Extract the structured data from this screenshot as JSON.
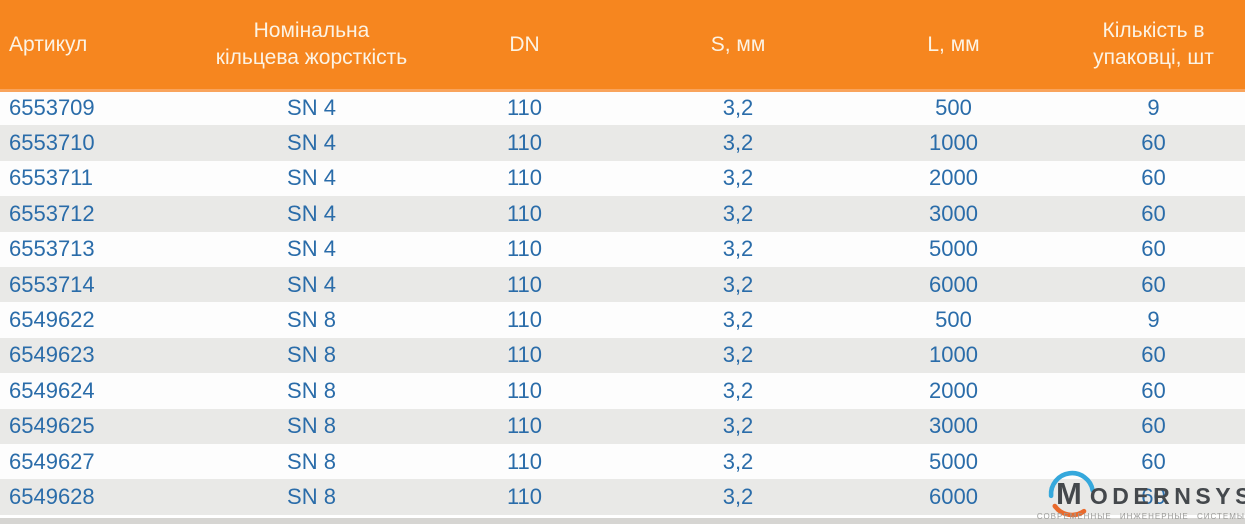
{
  "table": {
    "columns": [
      {
        "label": "Артикул"
      },
      {
        "label": "Номінальна кільцева жорсткість"
      },
      {
        "label": "DN"
      },
      {
        "label": "S, мм"
      },
      {
        "label": "L, мм"
      },
      {
        "label": "Кількість в упаковці, шт"
      }
    ],
    "rows": [
      [
        "6553709",
        "SN 4",
        "110",
        "3,2",
        "500",
        "9"
      ],
      [
        "6553710",
        "SN 4",
        "110",
        "3,2",
        "1000",
        "60"
      ],
      [
        "6553711",
        "SN 4",
        "110",
        "3,2",
        "2000",
        "60"
      ],
      [
        "6553712",
        "SN 4",
        "110",
        "3,2",
        "3000",
        "60"
      ],
      [
        "6553713",
        "SN 4",
        "110",
        "3,2",
        "5000",
        "60"
      ],
      [
        "6553714",
        "SN 4",
        "110",
        "3,2",
        "6000",
        "60"
      ],
      [
        "6549622",
        "SN 8",
        "110",
        "3,2",
        "500",
        "9"
      ],
      [
        "6549623",
        "SN 8",
        "110",
        "3,2",
        "1000",
        "60"
      ],
      [
        "6549624",
        "SN 8",
        "110",
        "3,2",
        "2000",
        "60"
      ],
      [
        "6549625",
        "SN 8",
        "110",
        "3,2",
        "3000",
        "60"
      ],
      [
        "6549627",
        "SN 8",
        "110",
        "3,2",
        "5000",
        "60"
      ],
      [
        "6549628",
        "SN 8",
        "110",
        "3,2",
        "6000",
        "60"
      ]
    ]
  },
  "logo": {
    "wordmark_initial": "M",
    "wordmark_rest": "ODERNSYS",
    "tagline": "СОВРЕМЕННЫЕ ИНЖЕНЕРНЫЕ СИСТЕМЫ"
  },
  "colors": {
    "header_bg": "#F6861F",
    "header_border": "#F9A45C",
    "header_text": "#FCF3E4",
    "cell_text": "#2A6CA9",
    "row_odd": "#FDFDFD",
    "row_even": "#E9E9E7",
    "bottom_bar": "#D6D5D2",
    "logo_blue_arc": "#35A8DC",
    "logo_orange_arc": "#E96A2C",
    "logo_text": "#44484C",
    "logo_tagline": "#9B9B98"
  }
}
